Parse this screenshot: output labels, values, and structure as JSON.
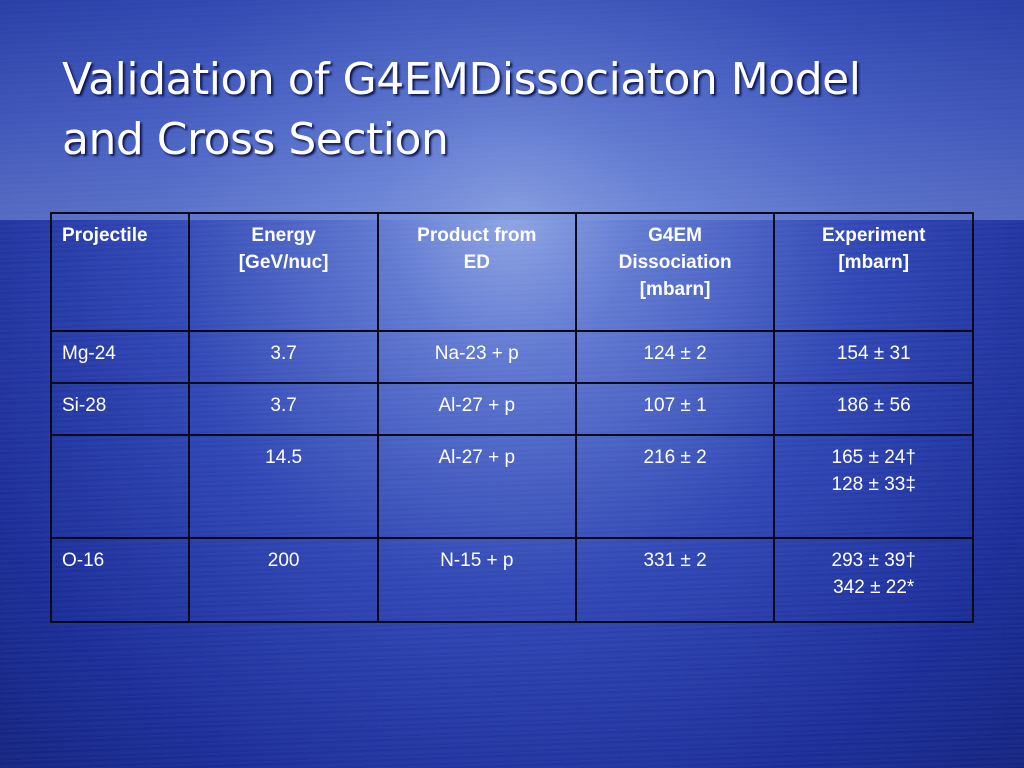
{
  "slide": {
    "title_line1": "Validation of G4EMDissociaton Model",
    "title_line2": "and Cross Section"
  },
  "table": {
    "headers": [
      [
        "Projectile"
      ],
      [
        "Energy",
        "[GeV/nuc]"
      ],
      [
        "Product from",
        "ED"
      ],
      [
        "G4EM",
        "Dissociation",
        "[mbarn]"
      ],
      [
        "Experiment",
        "[mbarn]"
      ]
    ],
    "rows": [
      {
        "projectile": "Mg-24",
        "energy": "3.7",
        "product": "Na-23 + p",
        "g4em": "124 ± 2",
        "experiment": [
          "154 ± 31"
        ]
      },
      {
        "projectile": "Si-28",
        "energy": "3.7",
        "product": "Al-27 + p",
        "g4em": "107 ± 1",
        "experiment": [
          "186 ± 56"
        ]
      },
      {
        "projectile": "",
        "energy": "14.5",
        "product": "Al-27 + p",
        "g4em": "216 ± 2",
        "experiment": [
          "165 ± 24†",
          "128 ± 33‡"
        ]
      },
      {
        "projectile": "O-16",
        "energy": "200",
        "product": "N-15 + p",
        "g4em": "331 ± 2",
        "experiment": [
          "293 ± 39†",
          "342 ± 22*"
        ]
      }
    ]
  }
}
